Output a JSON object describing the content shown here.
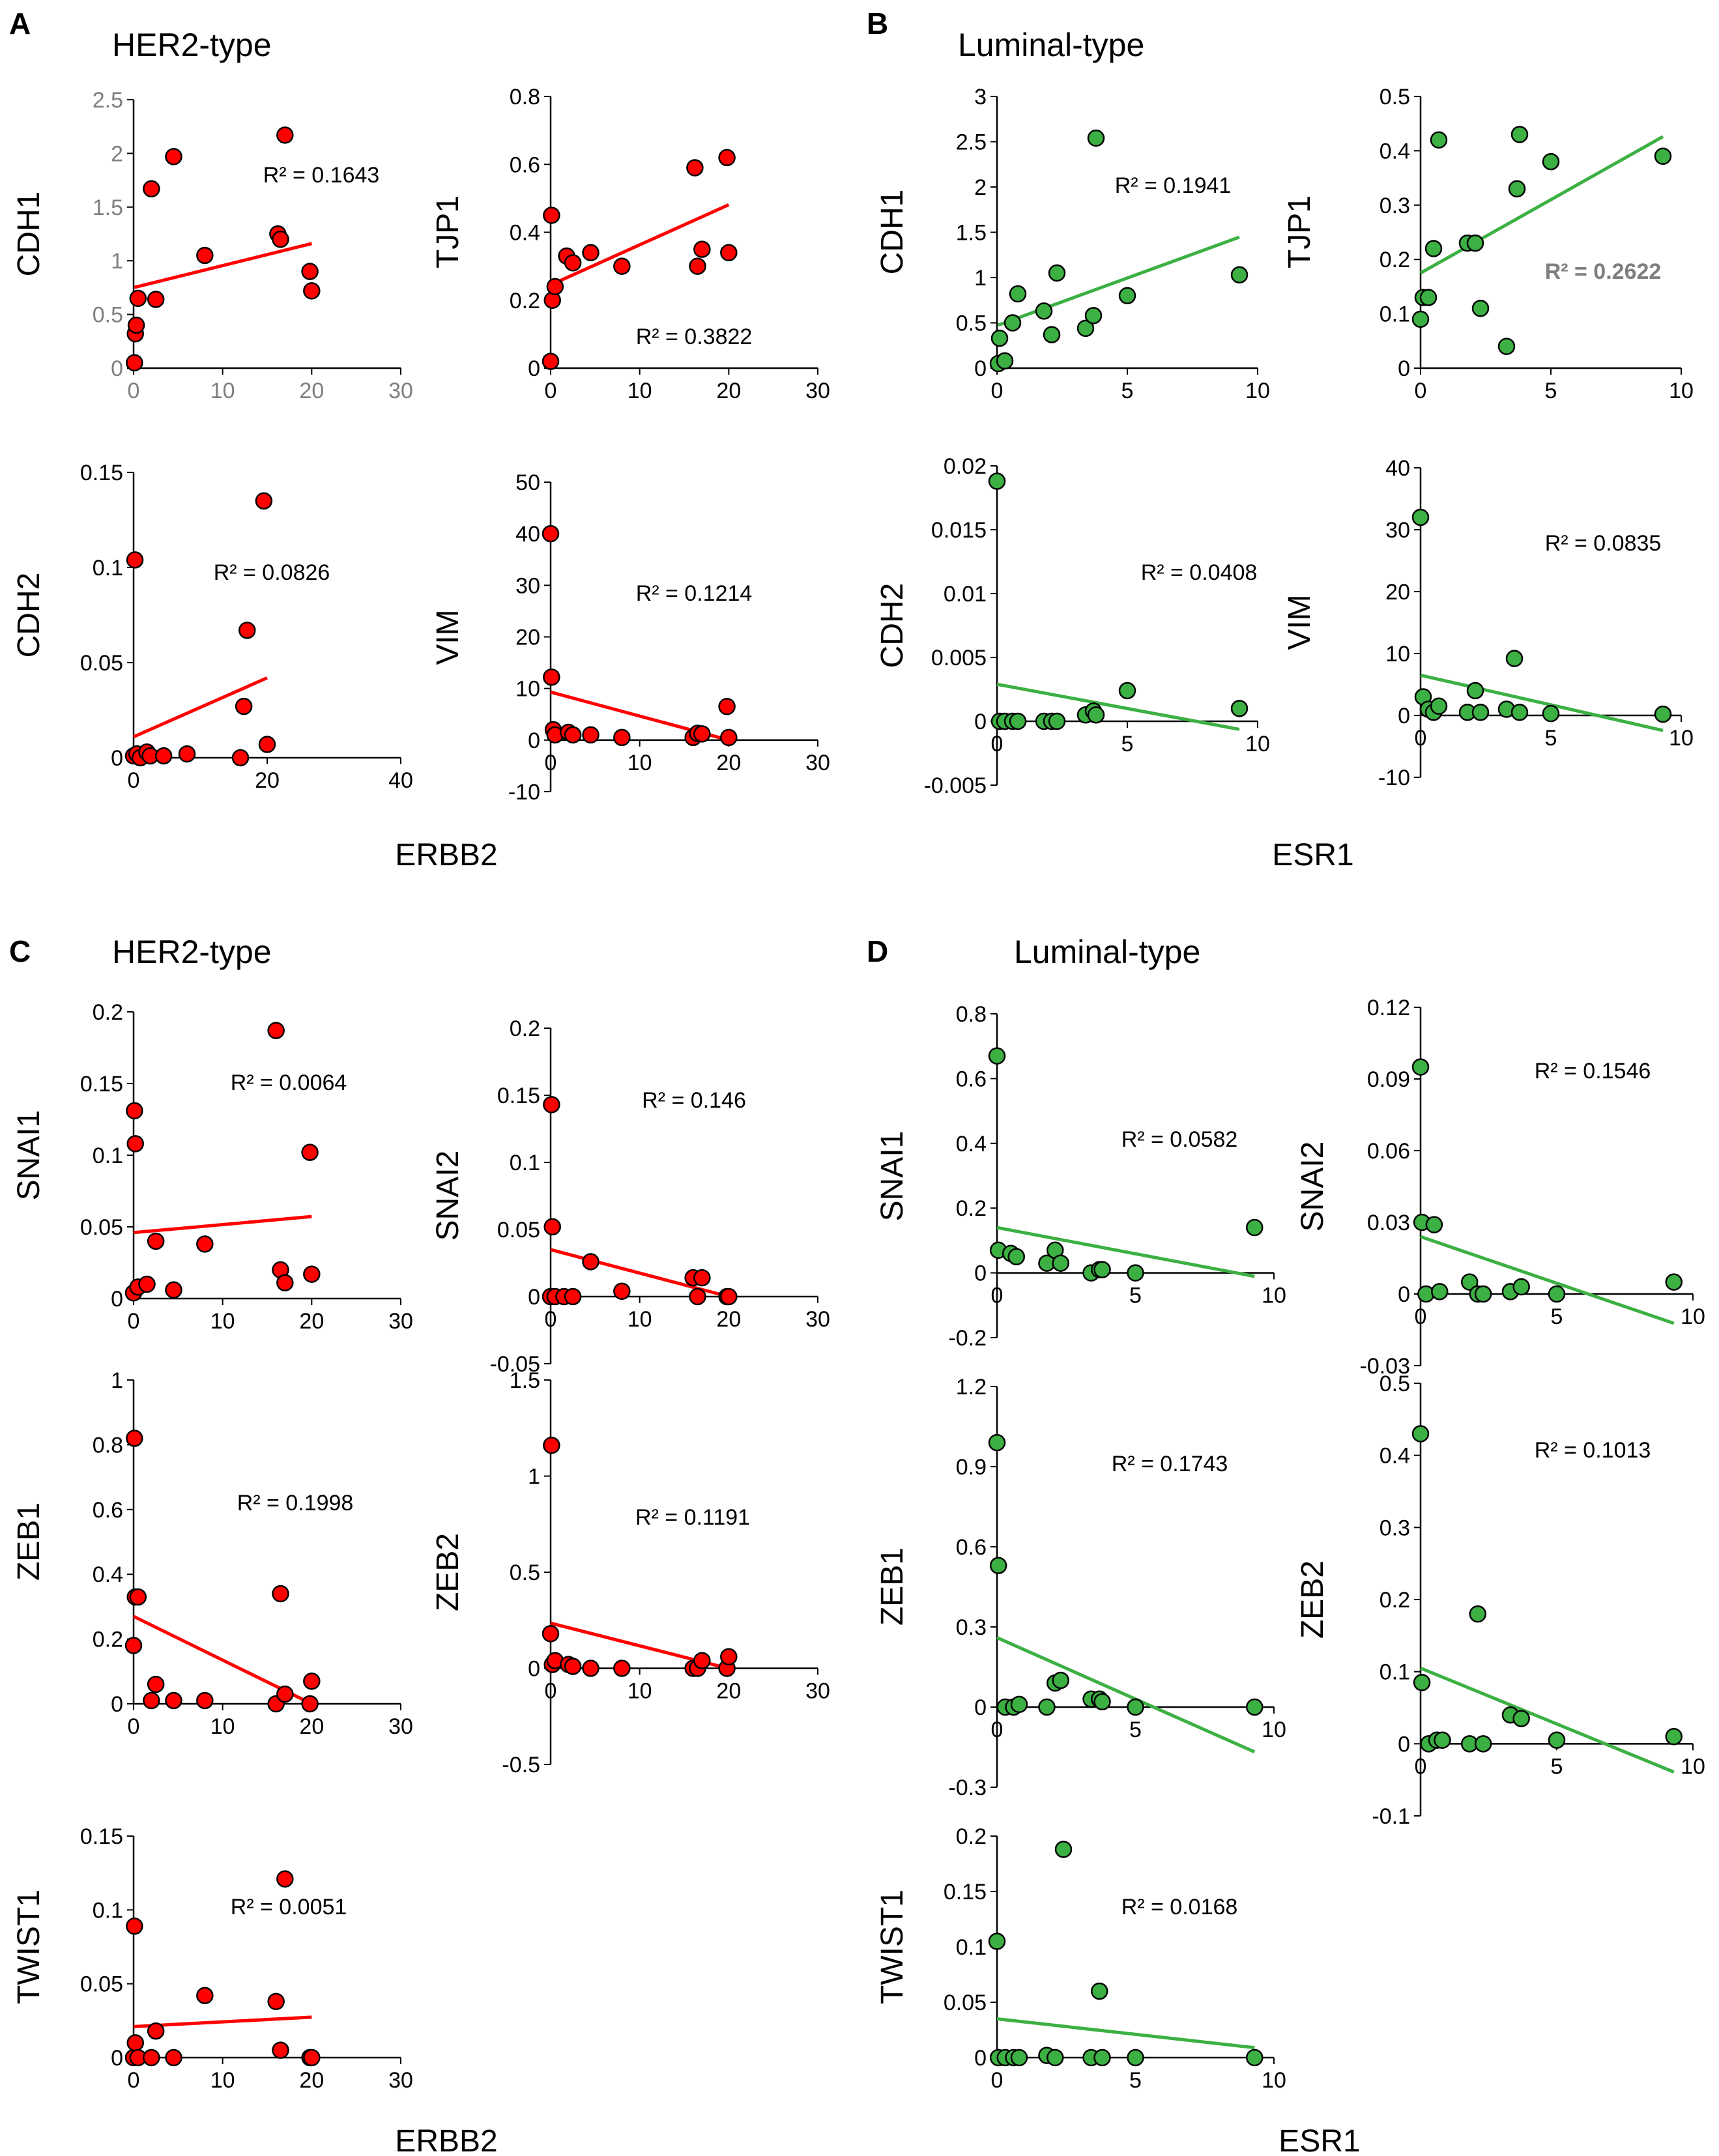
{
  "panels": [
    {
      "label": "A",
      "title": "HER2-type",
      "xlabel": "ERBB2"
    },
    {
      "label": "B",
      "title": "Luminal-type",
      "xlabel": "ESR1"
    },
    {
      "label": "C",
      "title": "HER2-type",
      "xlabel": "ERBB2"
    },
    {
      "label": "D",
      "title": "Luminal-type",
      "xlabel": "ESR1"
    }
  ],
  "colors": {
    "her2": "#ff0000",
    "luminal": "#3cb043",
    "point_stroke": "#000000",
    "gray_text": "#7f7f7f"
  },
  "chart_data": [
    {
      "type": "scatter",
      "panel": "A",
      "ylabel": "CDH1",
      "xlabel": "ERBB2",
      "color": "#ff0000",
      "xlim": [
        0,
        30
      ],
      "ylim": [
        0,
        2.5
      ],
      "xticks": [
        0,
        10,
        20,
        30
      ],
      "yticks": [
        0,
        0.5,
        1,
        1.5,
        2,
        2.5
      ],
      "ytick_labels": [
        "0",
        "0.5",
        "1",
        "1.5",
        "2",
        "2.5"
      ],
      "tick_color": "gray",
      "r2": "R² = 0.1643",
      "x": [
        0.1,
        0.2,
        0.3,
        0.5,
        2,
        2.5,
        4.5,
        8,
        16.2,
        16.5,
        17,
        19.8,
        20
      ],
      "y": [
        0.05,
        0.32,
        0.4,
        0.65,
        1.67,
        0.64,
        1.97,
        1.05,
        1.25,
        1.2,
        2.17,
        0.9,
        0.72
      ],
      "fit": [
        0.75,
        0.0205
      ]
    },
    {
      "type": "scatter",
      "panel": "A",
      "ylabel": "TJP1",
      "xlabel": "ERBB2",
      "color": "#ff0000",
      "xlim": [
        0,
        30
      ],
      "ylim": [
        0,
        0.8
      ],
      "xticks": [
        0,
        10,
        20,
        30
      ],
      "yticks": [
        0,
        0.2,
        0.4,
        0.6,
        0.8
      ],
      "ytick_labels": [
        "0",
        "0.2",
        "0.4",
        "0.6",
        "0.8"
      ],
      "r2": "R² = 0.3822",
      "x": [
        0,
        0.1,
        0.2,
        0.5,
        1.8,
        2.5,
        4.5,
        8,
        16.2,
        16.5,
        17,
        19.8,
        20
      ],
      "y": [
        0.02,
        0.45,
        0.2,
        0.24,
        0.33,
        0.31,
        0.34,
        0.3,
        0.59,
        0.3,
        0.35,
        0.62,
        0.34
      ],
      "fit": [
        0.245,
        0.0118
      ]
    },
    {
      "type": "scatter",
      "panel": "A",
      "ylabel": "CDH2",
      "xlabel": "",
      "color": "#ff0000",
      "xlim": [
        0,
        40
      ],
      "ylim": [
        0,
        0.15
      ],
      "xticks": [
        0,
        20,
        40
      ],
      "yticks": [
        0,
        0.05,
        0.1,
        0.15
      ],
      "ytick_labels": [
        "0",
        "0.05",
        "0.1",
        "0.15"
      ],
      "r2": "R² = 0.0826",
      "x": [
        0,
        0.2,
        0.5,
        1,
        2,
        2.5,
        4.5,
        8,
        16,
        16.5,
        17,
        19.5,
        20
      ],
      "y": [
        0.001,
        0.104,
        0.002,
        0.0,
        0.003,
        0.001,
        0.001,
        0.002,
        0.0,
        0.027,
        0.067,
        0.135,
        0.007
      ],
      "fit": [
        0.011,
        0.00155
      ]
    },
    {
      "type": "scatter",
      "panel": "A",
      "ylabel": "VIM",
      "xlabel": "ERBB2",
      "color": "#ff0000",
      "xlim": [
        0,
        30
      ],
      "ylim": [
        -10,
        50
      ],
      "xticks": [
        0,
        10,
        20,
        30
      ],
      "yticks": [
        -10,
        0,
        10,
        20,
        30,
        40,
        50
      ],
      "ytick_labels": [
        "-10",
        "0",
        "10",
        "20",
        "30",
        "40",
        "50"
      ],
      "r2": "R² = 0.1214",
      "x": [
        0,
        0.1,
        0.3,
        0.5,
        2,
        2.5,
        4.5,
        8,
        16,
        16.5,
        17,
        19.8,
        20
      ],
      "y": [
        40,
        12.2,
        2,
        1,
        1.5,
        1,
        1,
        0.5,
        0.5,
        1.3,
        1.2,
        6.5,
        0.5
      ],
      "fit": [
        9.3,
        -0.465
      ]
    },
    {
      "type": "scatter",
      "panel": "B",
      "ylabel": "CDH1",
      "xlabel": "ESR1",
      "color": "#3cb043",
      "xlim": [
        0,
        10
      ],
      "ylim": [
        0,
        3
      ],
      "xticks": [
        0,
        5,
        10
      ],
      "yticks": [
        0,
        0.5,
        1,
        1.5,
        2,
        2.5,
        3
      ],
      "ytick_labels": [
        "0",
        "0.5",
        "1",
        "1.5",
        "2",
        "2.5",
        "3"
      ],
      "r2": "R² = 0.1941",
      "x": [
        0.05,
        0.1,
        0.3,
        0.6,
        0.8,
        1.8,
        2.1,
        2.3,
        3.4,
        3.7,
        3.8,
        5,
        9.3
      ],
      "y": [
        0.05,
        0.33,
        0.08,
        0.5,
        0.82,
        0.63,
        0.37,
        1.05,
        0.44,
        0.58,
        2.54,
        0.8,
        1.03
      ],
      "fit": [
        0.47,
        0.105
      ]
    },
    {
      "type": "scatter",
      "panel": "B",
      "ylabel": "TJP1",
      "xlabel": "",
      "color": "#3cb043",
      "xlim": [
        0,
        10
      ],
      "ylim": [
        0,
        0.5
      ],
      "xticks": [
        0,
        5,
        10
      ],
      "yticks": [
        0,
        0.1,
        0.2,
        0.3,
        0.4,
        0.5
      ],
      "ytick_labels": [
        "0",
        "0.1",
        "0.2",
        "0.3",
        "0.4",
        "0.5"
      ],
      "r2": "R² = 0.2622",
      "r2_style": "gray",
      "x": [
        0,
        0.1,
        0.3,
        0.5,
        0.7,
        1.8,
        2.1,
        2.3,
        3.3,
        3.7,
        3.8,
        5,
        9.3
      ],
      "y": [
        0.09,
        0.13,
        0.13,
        0.22,
        0.42,
        0.23,
        0.23,
        0.11,
        0.04,
        0.33,
        0.43,
        0.38,
        0.39
      ],
      "fit": [
        0.175,
        0.027
      ]
    },
    {
      "type": "scatter",
      "panel": "B",
      "ylabel": "CDH2",
      "xlabel": "",
      "color": "#3cb043",
      "xlim": [
        0,
        10
      ],
      "ylim": [
        -0.005,
        0.02
      ],
      "xticks": [
        0,
        5,
        10
      ],
      "yticks": [
        -0.005,
        0,
        0.005,
        0.01,
        0.015,
        0.02
      ],
      "ytick_labels": [
        "-0.005",
        "0",
        "0.005",
        "0.01",
        "0.015",
        "0.02"
      ],
      "r2": "R² = 0.0408",
      "x": [
        0,
        0.1,
        0.3,
        0.6,
        0.8,
        1.8,
        2.1,
        2.3,
        3.4,
        3.7,
        3.8,
        5,
        9.3
      ],
      "y": [
        0.0188,
        0.0,
        0.0,
        0.0,
        0.0,
        0.0,
        0.0,
        0.0,
        0.0005,
        0.0008,
        0.0005,
        0.0024,
        0.001
      ],
      "fit": [
        0.0029,
        -0.00038
      ]
    },
    {
      "type": "scatter",
      "panel": "B",
      "ylabel": "VIM",
      "xlabel": "",
      "color": "#3cb043",
      "xlim": [
        0,
        10
      ],
      "ylim": [
        -10,
        40
      ],
      "xticks": [
        0,
        5,
        10
      ],
      "yticks": [
        -10,
        0,
        10,
        20,
        30,
        40
      ],
      "ytick_labels": [
        "-10",
        "0",
        "10",
        "20",
        "30",
        "40"
      ],
      "r2": "R² = 0.0835",
      "x": [
        0,
        0.1,
        0.3,
        0.5,
        0.7,
        1.8,
        2.1,
        2.3,
        3.3,
        3.6,
        3.8,
        5,
        9.3
      ],
      "y": [
        32,
        3,
        1,
        0.5,
        1.5,
        0.5,
        4,
        0.5,
        1,
        9.2,
        0.5,
        0.3,
        0.2
      ],
      "fit": [
        6.5,
        -0.96
      ]
    },
    {
      "type": "scatter",
      "panel": "C",
      "ylabel": "SNAI1",
      "xlabel": "ERBB2",
      "color": "#ff0000",
      "xlim": [
        0,
        30
      ],
      "ylim": [
        0,
        0.2
      ],
      "xticks": [
        0,
        10,
        20,
        30
      ],
      "yticks": [
        0,
        0.05,
        0.1,
        0.15,
        0.2
      ],
      "ytick_labels": [
        "0",
        "0.05",
        "0.1",
        "0.15",
        "0.2"
      ],
      "r2": "R² = 0.0064",
      "x": [
        0,
        0.1,
        0.2,
        0.5,
        1.5,
        2.5,
        4.5,
        8,
        16,
        16.5,
        17,
        19.8,
        20
      ],
      "y": [
        0.004,
        0.131,
        0.108,
        0.008,
        0.01,
        0.04,
        0.006,
        0.038,
        0.187,
        0.02,
        0.011,
        0.102,
        0.017
      ],
      "fit": [
        0.046,
        0.00056
      ]
    },
    {
      "type": "scatter",
      "panel": "C",
      "ylabel": "SNAI2",
      "xlabel": "",
      "color": "#ff0000",
      "xlim": [
        0,
        30
      ],
      "ylim": [
        -0.05,
        0.2
      ],
      "xticks": [
        0,
        10,
        20,
        30
      ],
      "yticks": [
        -0.05,
        0,
        0.05,
        0.1,
        0.15,
        0.2
      ],
      "ytick_labels": [
        "-0.05",
        "0",
        "0.05",
        "0.1",
        "0.15",
        "0.2"
      ],
      "r2": "R² = 0.146",
      "x": [
        0,
        0.1,
        0.2,
        0.5,
        1.5,
        2.5,
        4.5,
        8,
        16,
        16.5,
        17,
        19.8,
        20
      ],
      "y": [
        0.0,
        0.143,
        0.052,
        0.0,
        0.0,
        0.0,
        0.026,
        0.004,
        0.014,
        0.0,
        0.014,
        0.0,
        0.0
      ],
      "fit": [
        0.035,
        -0.00175
      ]
    },
    {
      "type": "scatter",
      "panel": "C",
      "ylabel": "ZEB1",
      "xlabel": "",
      "color": "#ff0000",
      "xlim": [
        0,
        30
      ],
      "ylim": [
        0,
        1
      ],
      "xticks": [
        0,
        10,
        20,
        30
      ],
      "yticks": [
        0,
        0.2,
        0.4,
        0.6,
        0.8,
        1
      ],
      "ytick_labels": [
        "0",
        "0.2",
        "0.4",
        "0.6",
        "0.8",
        "1"
      ],
      "r2": "R² = 0.1998",
      "x": [
        0,
        0.1,
        0.2,
        0.5,
        2,
        2.5,
        4.5,
        8,
        16,
        16.5,
        17,
        19.8,
        20
      ],
      "y": [
        0.18,
        0.82,
        0.33,
        0.33,
        0.01,
        0.06,
        0.01,
        0.01,
        0.0,
        0.34,
        0.03,
        0.0,
        0.07
      ],
      "fit": [
        0.27,
        -0.0135
      ]
    },
    {
      "type": "scatter",
      "panel": "C",
      "ylabel": "ZEB2",
      "xlabel": "",
      "color": "#ff0000",
      "xlim": [
        0,
        30
      ],
      "ylim": [
        -0.5,
        1.5
      ],
      "xticks": [
        0,
        10,
        20,
        30
      ],
      "yticks": [
        -0.5,
        0,
        0.5,
        1,
        1.5
      ],
      "ytick_labels": [
        "-0.5",
        "0",
        "0.5",
        "1",
        "1.5"
      ],
      "r2": "R² = 0.1191",
      "x": [
        0,
        0.1,
        0.2,
        0.5,
        2,
        2.5,
        4.5,
        8,
        16,
        16.5,
        17,
        19.8,
        20
      ],
      "y": [
        0.18,
        1.16,
        0.02,
        0.04,
        0.02,
        0.01,
        0.0,
        0.0,
        0.0,
        0.0,
        0.04,
        0.0,
        0.06
      ],
      "fit": [
        0.235,
        -0.0118
      ]
    },
    {
      "type": "scatter",
      "panel": "C",
      "ylabel": "TWIST1",
      "xlabel": "ERBB2",
      "color": "#ff0000",
      "xlim": [
        0,
        30
      ],
      "ylim": [
        0,
        0.15
      ],
      "xticks": [
        0,
        10,
        20,
        30
      ],
      "yticks": [
        0,
        0.05,
        0.1,
        0.15
      ],
      "ytick_labels": [
        "0",
        "0.05",
        "0.1",
        "0.15"
      ],
      "r2": "R² = 0.0051",
      "x": [
        0,
        0.1,
        0.2,
        0.5,
        2,
        2.5,
        4.5,
        8,
        16,
        16.5,
        17,
        19.8,
        20
      ],
      "y": [
        0.0,
        0.089,
        0.01,
        0.0,
        0.0,
        0.018,
        0.0,
        0.042,
        0.038,
        0.005,
        0.121,
        0.0,
        0.0
      ],
      "fit": [
        0.021,
        0.00032
      ]
    },
    {
      "type": "scatter",
      "panel": "D",
      "ylabel": "SNAI1",
      "xlabel": "",
      "color": "#3cb043",
      "xlim": [
        0,
        10
      ],
      "ylim": [
        -0.2,
        0.8
      ],
      "xticks": [
        0,
        5,
        10
      ],
      "yticks": [
        -0.2,
        0,
        0.2,
        0.4,
        0.6,
        0.8
      ],
      "ytick_labels": [
        "-0.2",
        "0",
        "0.2",
        "0.4",
        "0.6",
        "0.8"
      ],
      "r2": "R² = 0.0582",
      "x": [
        0,
        0.05,
        0.5,
        0.7,
        1.8,
        2.1,
        2.3,
        3.4,
        3.7,
        3.8,
        5,
        9.3
      ],
      "y": [
        0.67,
        0.07,
        0.06,
        0.05,
        0.03,
        0.07,
        0.03,
        0.0,
        0.01,
        0.01,
        0.0,
        0.14
      ],
      "fit": [
        0.14,
        -0.0162
      ]
    },
    {
      "type": "scatter",
      "panel": "D",
      "ylabel": "SNAI2",
      "xlabel": "",
      "color": "#3cb043",
      "xlim": [
        0,
        10
      ],
      "ylim": [
        -0.03,
        0.12
      ],
      "xticks": [
        0,
        5,
        10
      ],
      "yticks": [
        -0.03,
        0,
        0.03,
        0.06,
        0.09,
        0.12
      ],
      "ytick_labels": [
        "-0.03",
        "0",
        "0.03",
        "0.06",
        "0.09",
        "0.12"
      ],
      "r2": "R² = 0.1546",
      "x": [
        0,
        0.05,
        0.2,
        0.5,
        0.7,
        1.8,
        2.1,
        2.3,
        3.3,
        3.7,
        5,
        9.3
      ],
      "y": [
        0.095,
        0.03,
        0.0,
        0.029,
        0.001,
        0.005,
        0.0,
        0.0,
        0.001,
        0.003,
        0.0,
        0.005
      ],
      "fit": [
        0.024,
        -0.0039
      ]
    },
    {
      "type": "scatter",
      "panel": "D",
      "ylabel": "ZEB1",
      "xlabel": "",
      "color": "#3cb043",
      "xlim": [
        0,
        10
      ],
      "ylim": [
        -0.3,
        1.2
      ],
      "xticks": [
        0,
        5,
        10
      ],
      "yticks": [
        -0.3,
        0,
        0.3,
        0.6,
        0.9,
        1.2
      ],
      "ytick_labels": [
        "-0.3",
        "0",
        "0.3",
        "0.6",
        "0.9",
        "1.2"
      ],
      "r2": "R² = 0.1743",
      "x": [
        0,
        0.05,
        0.3,
        0.6,
        0.8,
        1.8,
        2.1,
        2.3,
        3.4,
        3.7,
        3.8,
        5,
        9.3
      ],
      "y": [
        0.99,
        0.53,
        0.0,
        0.0,
        0.01,
        0.0,
        0.09,
        0.1,
        0.03,
        0.03,
        0.02,
        0.0,
        0.0
      ],
      "fit": [
        0.26,
        -0.046
      ]
    },
    {
      "type": "scatter",
      "panel": "D",
      "ylabel": "ZEB2",
      "xlabel": "",
      "color": "#3cb043",
      "xlim": [
        0,
        10
      ],
      "ylim": [
        -0.1,
        0.5
      ],
      "xticks": [
        0,
        5,
        10
      ],
      "yticks": [
        -0.1,
        0,
        0.1,
        0.2,
        0.3,
        0.4,
        0.5
      ],
      "ytick_labels": [
        "-0.1",
        "0",
        "0.1",
        "0.2",
        "0.3",
        "0.4",
        "0.5"
      ],
      "r2": "R² = 0.1013",
      "x": [
        0,
        0.05,
        0.3,
        0.6,
        0.8,
        1.8,
        2.1,
        2.3,
        3.3,
        3.7,
        5,
        9.3
      ],
      "y": [
        0.43,
        0.085,
        0.0,
        0.005,
        0.005,
        0.0,
        0.18,
        0.0,
        0.04,
        0.035,
        0.005,
        0.01
      ],
      "fit": [
        0.105,
        -0.0155
      ]
    },
    {
      "type": "scatter",
      "panel": "D",
      "ylabel": "TWIST1",
      "xlabel": "ESR1",
      "color": "#3cb043",
      "xlim": [
        0,
        10
      ],
      "ylim": [
        0,
        0.2
      ],
      "xticks": [
        0,
        5,
        10
      ],
      "yticks": [
        0,
        0.05,
        0.1,
        0.15,
        0.2
      ],
      "ytick_labels": [
        "0",
        "0.05",
        "0.1",
        "0.15",
        "0.2"
      ],
      "r2": "R² = 0.0168",
      "x": [
        0,
        0.05,
        0.3,
        0.6,
        0.8,
        1.8,
        2.1,
        2.4,
        3.4,
        3.7,
        3.8,
        5,
        9.3
      ],
      "y": [
        0.105,
        0.0,
        0.0,
        0.0,
        0.0,
        0.002,
        0.0,
        0.188,
        0.0,
        0.06,
        0.0,
        0.0,
        0.0
      ],
      "fit": [
        0.035,
        -0.0028
      ]
    }
  ]
}
